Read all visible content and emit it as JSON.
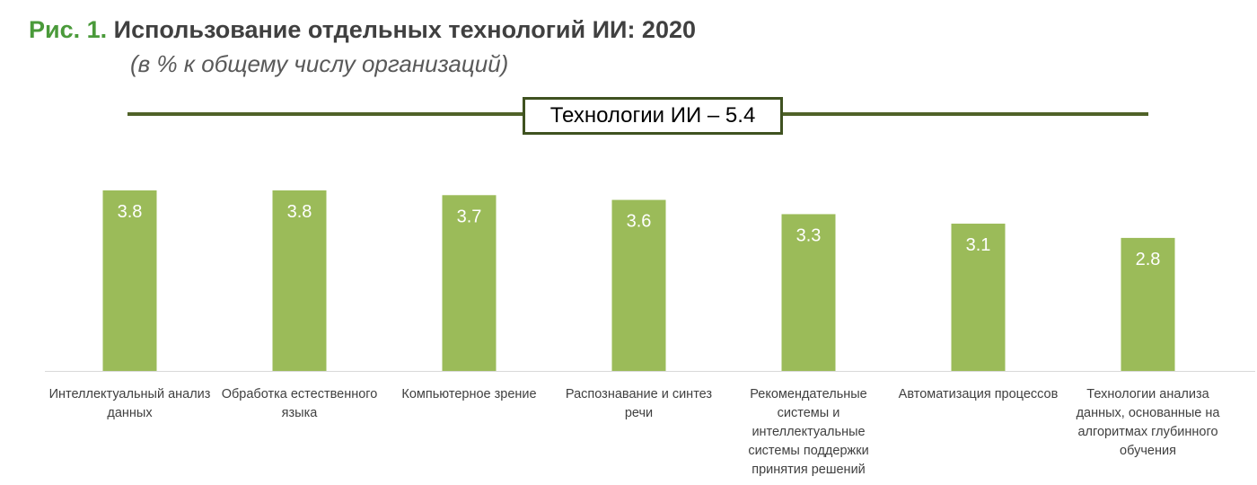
{
  "header": {
    "fig_label": "Рис. 1.",
    "title": "Использование отдельных технологий ИИ: 2020",
    "subtitle": "(в % к общему числу организаций)"
  },
  "banner": {
    "text": "Технологии ИИ – 5.4"
  },
  "colors": {
    "bar": "#9bbb59",
    "banner_line": "#4f6228",
    "fig_label": "#4a9a3a"
  },
  "chart_data": {
    "type": "bar",
    "title": "Использование отдельных технологий ИИ: 2020",
    "subtitle": "(в % к общему числу организаций)",
    "categories": [
      [
        "Интеллектуальный анализ",
        "данных"
      ],
      [
        "Обработка естественного",
        "языка"
      ],
      [
        "Компьютерное зрение"
      ],
      [
        "Распознавание и синтез",
        "речи"
      ],
      [
        "Рекомендательные",
        "системы  и",
        "интеллектуальные",
        "системы поддержки",
        "принятия решений"
      ],
      [
        "Автоматизация процессов"
      ],
      [
        "Технологии анализа",
        "данных, основанные на",
        "алгоритмах глубинного",
        "обучения"
      ]
    ],
    "values": [
      3.8,
      3.8,
      3.7,
      3.6,
      3.3,
      3.1,
      2.8
    ],
    "data_labels": [
      "3.8",
      "3.8",
      "3.7",
      "3.6",
      "3.3",
      "3.1",
      "2.8"
    ],
    "ylim": [
      0,
      3.8
    ],
    "grid": false,
    "legend": "none"
  }
}
